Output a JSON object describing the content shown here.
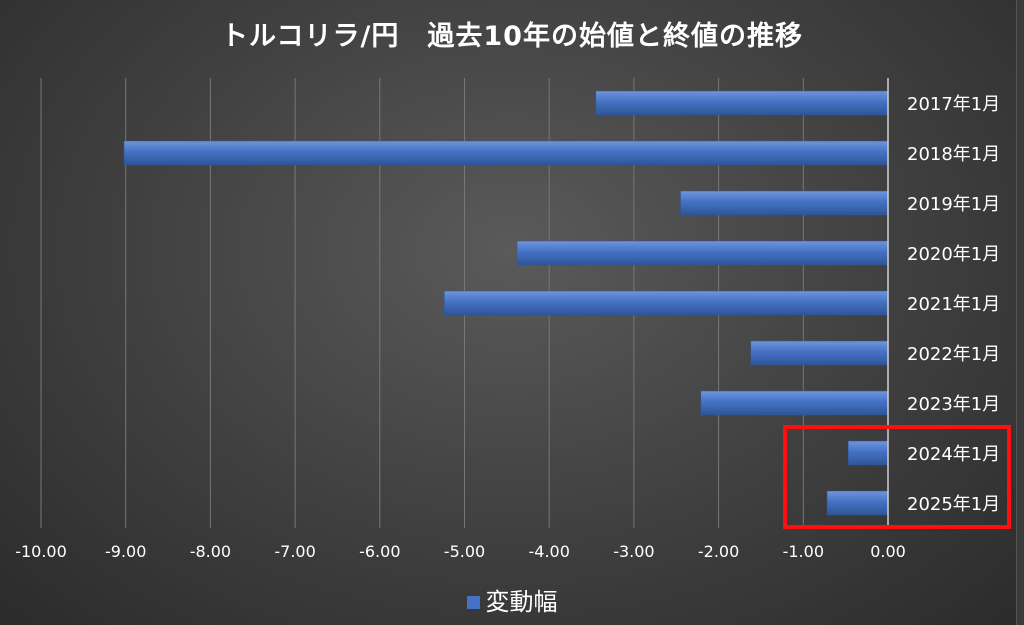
{
  "chart_data": {
    "type": "bar",
    "orientation": "horizontal",
    "title": "トルコリラ/円　過去10年の始値と終値の推移",
    "categories": [
      "2017年1月",
      "2018年1月",
      "2019年1月",
      "2020年1月",
      "2021年1月",
      "2022年1月",
      "2023年1月",
      "2024年1月",
      "2025年1月"
    ],
    "series": [
      {
        "name": "変動幅",
        "values": [
          -3.45,
          -9.02,
          -2.45,
          -4.38,
          -5.24,
          -1.62,
          -2.21,
          -0.47,
          -0.72
        ]
      }
    ],
    "xlim": [
      -10,
      0
    ],
    "x_ticks": [
      "-10.00",
      "-9.00",
      "-8.00",
      "-7.00",
      "-6.00",
      "-5.00",
      "-4.00",
      "-3.00",
      "-2.00",
      "-1.00",
      "0.00"
    ],
    "grid": "vertical",
    "legend": "bottom",
    "highlighted_categories": [
      "2024年1月",
      "2025年1月"
    ],
    "colors": {
      "bar": "#4472c4",
      "bar_dark": "#2f5597",
      "grid": "#777777",
      "text": "#ffffff",
      "highlight": "#ff1010"
    }
  }
}
